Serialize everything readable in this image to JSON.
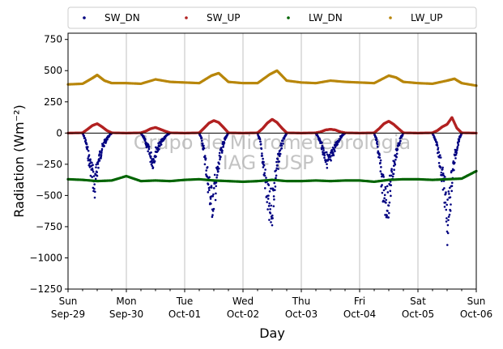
{
  "chart_data": {
    "type": "scatter",
    "title": "",
    "xlabel": "Day",
    "ylabel": "Radiation (Wm⁻²)",
    "ylim": [
      -1250,
      800
    ],
    "xlim": [
      "2019-09-29",
      "2019-10-06"
    ],
    "yticks": [
      750,
      500,
      250,
      0,
      -250,
      -500,
      -750,
      -1000,
      -1250
    ],
    "ytick_labels": [
      "750",
      "500",
      "250",
      "0",
      "−250",
      "−500",
      "−750",
      "−1000",
      "−1250"
    ],
    "xticks": [
      {
        "date": "2019-09-29",
        "day": "Sun",
        "date_label": "Sep-29"
      },
      {
        "date": "2019-09-30",
        "day": "Mon",
        "date_label": "Sep-30"
      },
      {
        "date": "2019-10-01",
        "day": "Tue",
        "date_label": "Oct-01"
      },
      {
        "date": "2019-10-02",
        "day": "Wed",
        "date_label": "Oct-02"
      },
      {
        "date": "2019-10-03",
        "day": "Thu",
        "date_label": "Oct-03"
      },
      {
        "date": "2019-10-04",
        "day": "Fri",
        "date_label": "Oct-04"
      },
      {
        "date": "2019-10-05",
        "day": "Sat",
        "date_label": "Oct-05"
      },
      {
        "date": "2019-10-06",
        "day": "Sun",
        "date_label": "Oct-06"
      }
    ],
    "grid": "vertical",
    "zero_line": true,
    "legend_position": "top, above plot",
    "watermark": [
      "Grupo de Micrometeorologia",
      "IAG - USP"
    ],
    "series": [
      {
        "name": "SW_DN",
        "color": "#000080",
        "x": [
          "2019-09-29 06:00",
          "2019-09-29 07:00",
          "2019-09-29 08:00",
          "2019-09-29 09:00",
          "2019-09-29 10:00",
          "2019-09-29 11:00",
          "2019-09-29 12:00",
          "2019-09-29 13:00",
          "2019-09-29 14:00",
          "2019-09-29 15:00",
          "2019-09-29 16:00",
          "2019-09-29 17:00",
          "2019-09-29 18:00",
          "2019-09-30 06:00",
          "2019-09-30 07:00",
          "2019-09-30 08:00",
          "2019-09-30 09:00",
          "2019-09-30 10:00",
          "2019-09-30 11:00",
          "2019-09-30 12:00",
          "2019-09-30 13:00",
          "2019-09-30 14:00",
          "2019-09-30 15:00",
          "2019-09-30 16:00",
          "2019-09-30 17:00",
          "2019-09-30 18:00",
          "2019-10-01 06:00",
          "2019-10-01 07:00",
          "2019-10-01 08:00",
          "2019-10-01 09:00",
          "2019-10-01 10:00",
          "2019-10-01 11:00",
          "2019-10-01 12:00",
          "2019-10-01 13:00",
          "2019-10-01 14:00",
          "2019-10-01 15:00",
          "2019-10-01 16:00",
          "2019-10-01 17:00",
          "2019-10-01 18:00",
          "2019-10-02 06:00",
          "2019-10-02 07:00",
          "2019-10-02 08:00",
          "2019-10-02 09:00",
          "2019-10-02 10:00",
          "2019-10-02 11:00",
          "2019-10-02 12:00",
          "2019-10-02 13:00",
          "2019-10-02 14:00",
          "2019-10-02 15:00",
          "2019-10-02 16:00",
          "2019-10-02 17:00",
          "2019-10-02 18:00",
          "2019-10-03 06:00",
          "2019-10-03 07:00",
          "2019-10-03 08:00",
          "2019-10-03 09:00",
          "2019-10-03 10:00",
          "2019-10-03 11:00",
          "2019-10-03 12:00",
          "2019-10-03 13:00",
          "2019-10-03 14:00",
          "2019-10-03 15:00",
          "2019-10-03 16:00",
          "2019-10-03 17:00",
          "2019-10-03 18:00",
          "2019-10-04 06:00",
          "2019-10-04 07:00",
          "2019-10-04 08:00",
          "2019-10-04 09:00",
          "2019-10-04 10:00",
          "2019-10-04 11:00",
          "2019-10-04 12:00",
          "2019-10-04 13:00",
          "2019-10-04 14:00",
          "2019-10-04 15:00",
          "2019-10-04 16:00",
          "2019-10-04 17:00",
          "2019-10-04 18:00",
          "2019-10-05 06:00",
          "2019-10-05 07:00",
          "2019-10-05 08:00",
          "2019-10-05 09:00",
          "2019-10-05 10:00",
          "2019-10-05 11:00",
          "2019-10-05 12:00",
          "2019-10-05 13:00",
          "2019-10-05 14:00",
          "2019-10-05 15:00",
          "2019-10-05 16:00",
          "2019-10-05 17:00",
          "2019-10-05 18:00"
        ],
        "y": [
          -5,
          -60,
          -180,
          -320,
          -400,
          -580,
          -350,
          -250,
          -160,
          -100,
          -60,
          -25,
          -3,
          -5,
          -40,
          -100,
          -160,
          -250,
          -290,
          -200,
          -150,
          -110,
          -70,
          -40,
          -15,
          -3,
          -5,
          -60,
          -200,
          -380,
          -550,
          -720,
          -640,
          -500,
          -350,
          -200,
          -100,
          -40,
          -3,
          -5,
          -80,
          -250,
          -450,
          -650,
          -830,
          -750,
          -520,
          -360,
          -220,
          -120,
          -50,
          -3,
          -5,
          -40,
          -100,
          -180,
          -250,
          -300,
          -270,
          -200,
          -140,
          -90,
          -50,
          -20,
          -3,
          -5,
          -80,
          -250,
          -460,
          -620,
          -740,
          -680,
          -500,
          -350,
          -220,
          -120,
          -50,
          -3,
          -5,
          -60,
          -150,
          -280,
          -430,
          -600,
          -940,
          -760,
          -450,
          -280,
          -150,
          -60,
          -3
        ]
      },
      {
        "name": "SW_UP",
        "color": "#b22222",
        "x": [
          "2019-09-29 00:00",
          "2019-09-29 06:00",
          "2019-09-29 08:00",
          "2019-09-29 10:00",
          "2019-09-29 12:00",
          "2019-09-29 14:00",
          "2019-09-29 16:00",
          "2019-09-29 18:00",
          "2019-09-30 00:00",
          "2019-09-30 06:00",
          "2019-09-30 08:00",
          "2019-09-30 10:00",
          "2019-09-30 12:00",
          "2019-09-30 14:00",
          "2019-09-30 16:00",
          "2019-09-30 18:00",
          "2019-10-01 00:00",
          "2019-10-01 06:00",
          "2019-10-01 08:00",
          "2019-10-01 10:00",
          "2019-10-01 12:00",
          "2019-10-01 14:00",
          "2019-10-01 16:00",
          "2019-10-01 18:00",
          "2019-10-02 00:00",
          "2019-10-02 06:00",
          "2019-10-02 08:00",
          "2019-10-02 10:00",
          "2019-10-02 12:00",
          "2019-10-02 14:00",
          "2019-10-02 16:00",
          "2019-10-02 18:00",
          "2019-10-03 00:00",
          "2019-10-03 06:00",
          "2019-10-03 08:00",
          "2019-10-03 10:00",
          "2019-10-03 12:00",
          "2019-10-03 14:00",
          "2019-10-03 16:00",
          "2019-10-03 18:00",
          "2019-10-04 00:00",
          "2019-10-04 06:00",
          "2019-10-04 08:00",
          "2019-10-04 10:00",
          "2019-10-04 12:00",
          "2019-10-04 14:00",
          "2019-10-04 16:00",
          "2019-10-04 18:00",
          "2019-10-05 00:00",
          "2019-10-05 06:00",
          "2019-10-05 08:00",
          "2019-10-05 10:00",
          "2019-10-05 12:00",
          "2019-10-05 14:00",
          "2019-10-05 16:00",
          "2019-10-05 18:00",
          "2019-10-06 00:00"
        ],
        "y": [
          0,
          2,
          30,
          60,
          75,
          50,
          20,
          2,
          0,
          2,
          15,
          35,
          45,
          30,
          15,
          2,
          0,
          2,
          40,
          80,
          100,
          85,
          45,
          2,
          0,
          2,
          35,
          80,
          110,
          85,
          40,
          2,
          0,
          2,
          10,
          25,
          30,
          25,
          10,
          2,
          0,
          2,
          35,
          75,
          95,
          70,
          35,
          2,
          0,
          2,
          20,
          50,
          70,
          125,
          40,
          2,
          0
        ]
      },
      {
        "name": "LW_DN",
        "color": "#006400",
        "x": [
          "2019-09-29 00:00",
          "2019-09-29 06:00",
          "2019-09-29 12:00",
          "2019-09-29 18:00",
          "2019-09-30 00:00",
          "2019-09-30 06:00",
          "2019-09-30 12:00",
          "2019-09-30 18:00",
          "2019-10-01 00:00",
          "2019-10-01 06:00",
          "2019-10-01 12:00",
          "2019-10-01 18:00",
          "2019-10-02 00:00",
          "2019-10-02 06:00",
          "2019-10-02 12:00",
          "2019-10-02 18:00",
          "2019-10-03 00:00",
          "2019-10-03 06:00",
          "2019-10-03 12:00",
          "2019-10-03 18:00",
          "2019-10-04 00:00",
          "2019-10-04 06:00",
          "2019-10-04 12:00",
          "2019-10-04 18:00",
          "2019-10-05 00:00",
          "2019-10-05 06:00",
          "2019-10-05 12:00",
          "2019-10-05 18:00",
          "2019-10-06 00:00"
        ],
        "y": [
          -370,
          -375,
          -385,
          -380,
          -345,
          -385,
          -380,
          -385,
          -375,
          -370,
          -380,
          -385,
          -390,
          -385,
          -375,
          -385,
          -385,
          -380,
          -385,
          -380,
          -380,
          -390,
          -375,
          -370,
          -370,
          -375,
          -370,
          -365,
          -305
        ]
      },
      {
        "name": "LW_UP",
        "color": "#b8860b",
        "x": [
          "2019-09-29 00:00",
          "2019-09-29 06:00",
          "2019-09-29 10:00",
          "2019-09-29 12:00",
          "2019-09-29 15:00",
          "2019-09-29 18:00",
          "2019-09-30 00:00",
          "2019-09-30 06:00",
          "2019-09-30 12:00",
          "2019-09-30 18:00",
          "2019-10-01 00:00",
          "2019-10-01 06:00",
          "2019-10-01 11:00",
          "2019-10-01 14:00",
          "2019-10-01 18:00",
          "2019-10-02 00:00",
          "2019-10-02 06:00",
          "2019-10-02 11:00",
          "2019-10-02 14:00",
          "2019-10-02 18:00",
          "2019-10-03 00:00",
          "2019-10-03 06:00",
          "2019-10-03 12:00",
          "2019-10-03 18:00",
          "2019-10-04 00:00",
          "2019-10-04 06:00",
          "2019-10-04 12:00",
          "2019-10-04 15:00",
          "2019-10-04 18:00",
          "2019-10-05 00:00",
          "2019-10-05 06:00",
          "2019-10-05 12:00",
          "2019-10-05 15:00",
          "2019-10-05 18:00",
          "2019-10-06 00:00"
        ],
        "y": [
          390,
          395,
          440,
          465,
          420,
          400,
          400,
          395,
          430,
          410,
          405,
          400,
          460,
          480,
          410,
          400,
          400,
          470,
          500,
          420,
          405,
          400,
          420,
          410,
          405,
          400,
          460,
          445,
          410,
          400,
          395,
          420,
          435,
          400,
          380
        ]
      }
    ]
  }
}
